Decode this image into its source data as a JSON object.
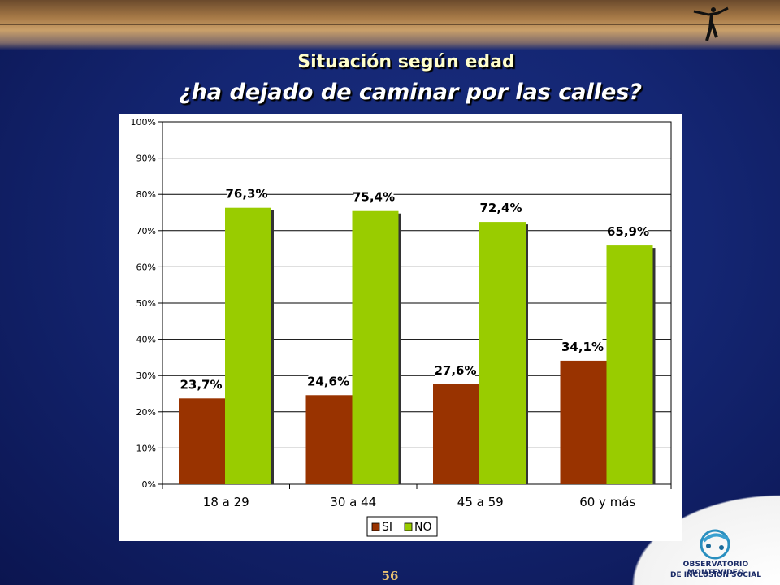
{
  "header": {
    "title": "Situación según edad",
    "subtitle": "¿ha dejado de caminar por las calles?"
  },
  "footer": {
    "page_number": "56",
    "logo_line1": "OBSERVATORIO MONTEVIDEO",
    "logo_line2": "DE INCLUSION SOCIAL"
  },
  "colors": {
    "si": "#993300",
    "no": "#99CC00",
    "background": "#142673"
  },
  "chart_data": {
    "type": "bar",
    "categories": [
      "18 a 29",
      "30 a 44",
      "45 a 59",
      "60 y más"
    ],
    "series": [
      {
        "name": "SI",
        "values": [
          23.7,
          24.6,
          27.6,
          34.1
        ],
        "labels": [
          "23,7%",
          "24,6%",
          "27,6%",
          "34,1%"
        ]
      },
      {
        "name": "NO",
        "values": [
          76.3,
          75.4,
          72.4,
          65.9
        ],
        "labels": [
          "76,3%",
          "75,4%",
          "72,4%",
          "65,9%"
        ]
      }
    ],
    "ylim": [
      0,
      100
    ],
    "yticks": [
      "0%",
      "10%",
      "20%",
      "30%",
      "40%",
      "50%",
      "60%",
      "70%",
      "80%",
      "90%",
      "100%"
    ],
    "grid": true,
    "legend": "bottom-center"
  }
}
